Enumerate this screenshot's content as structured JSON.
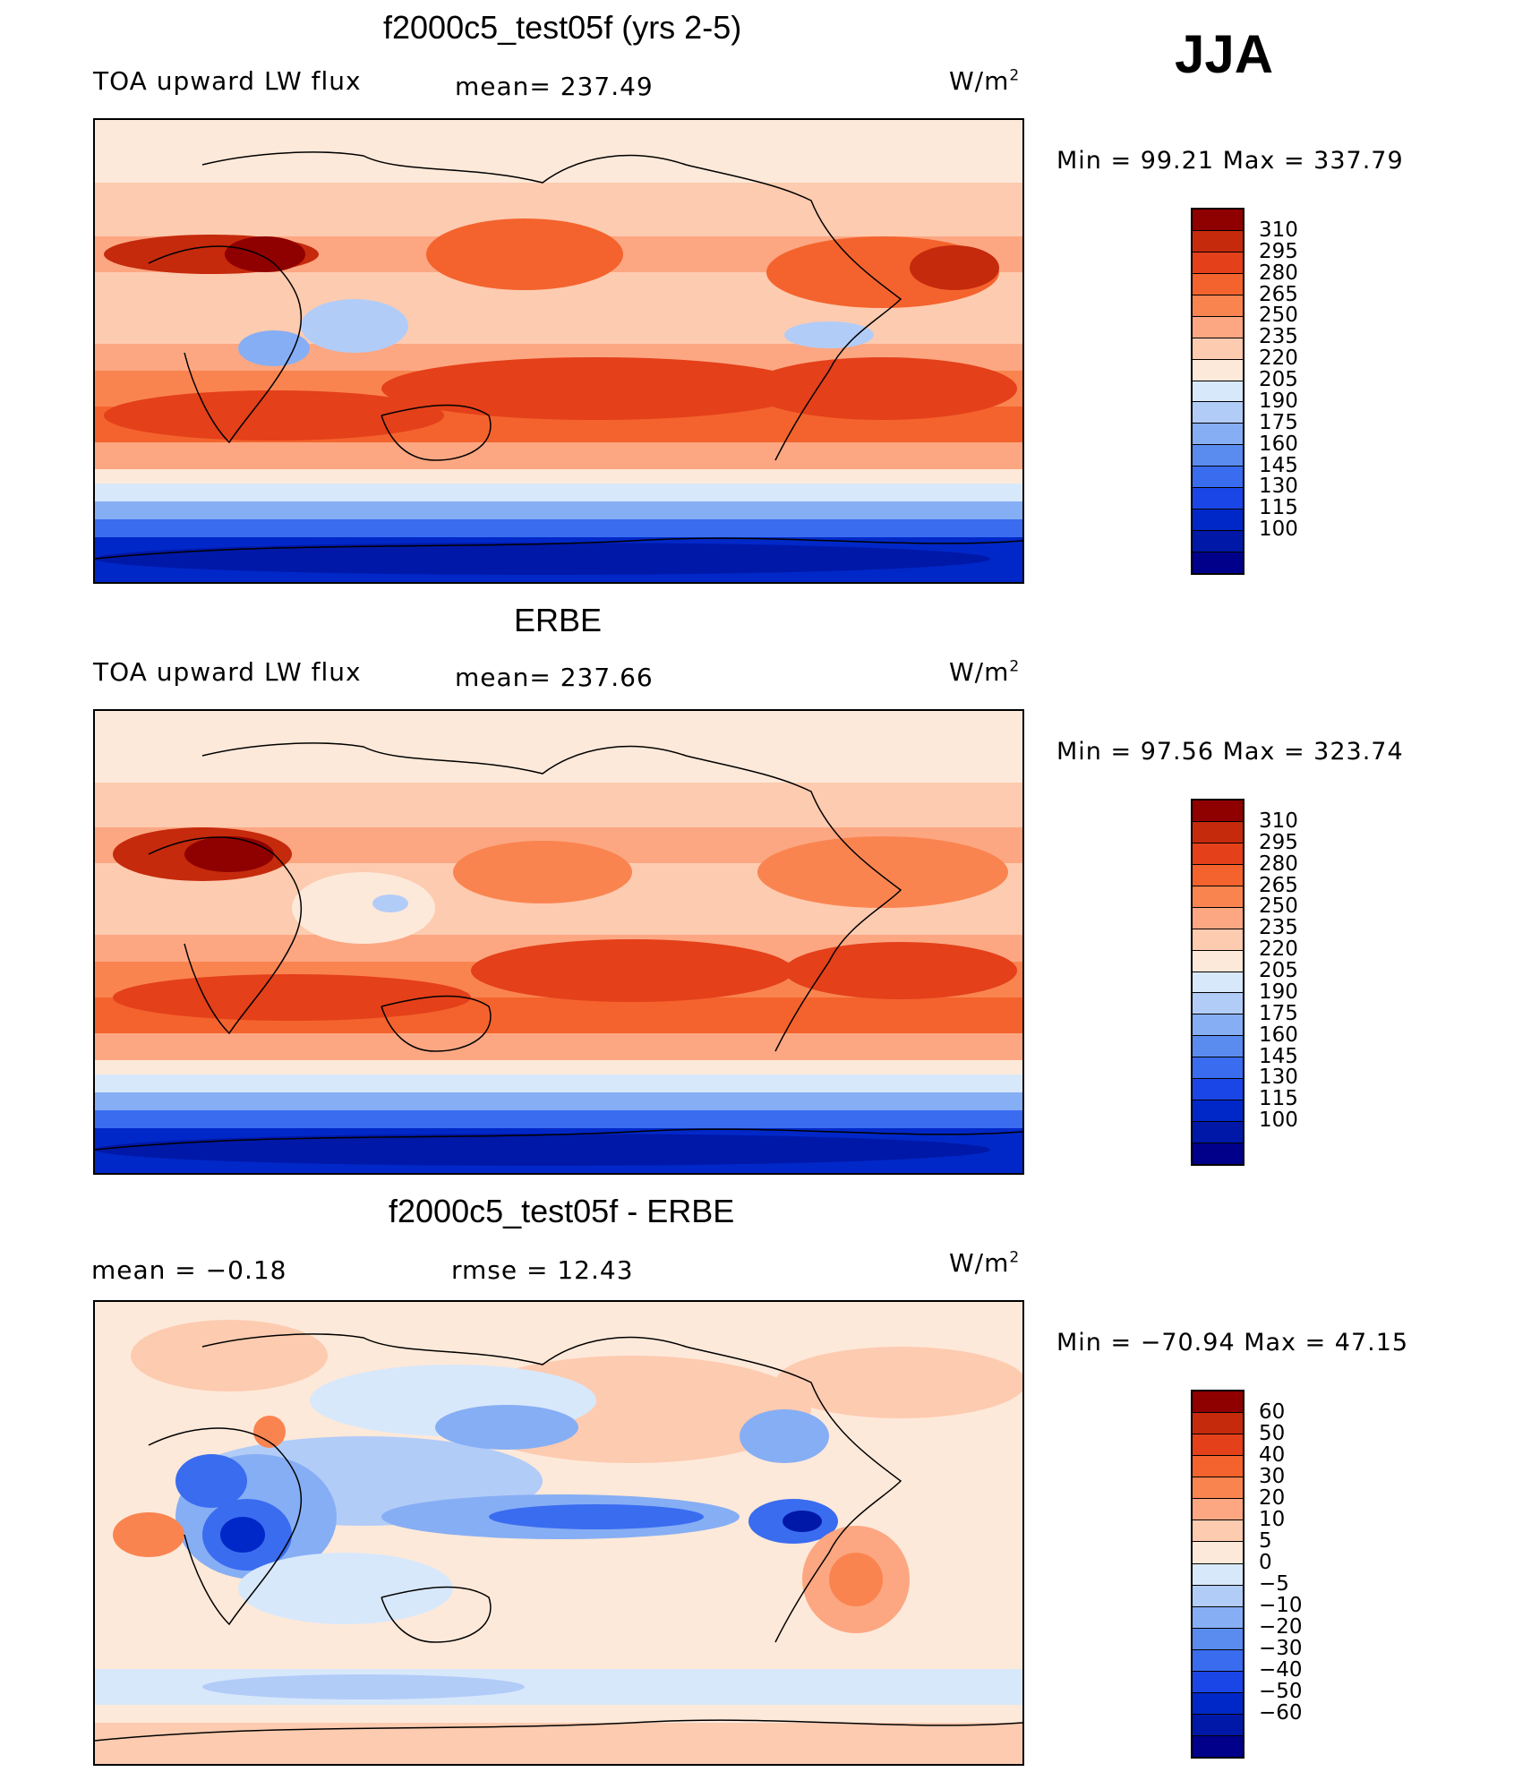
{
  "season": "JJA",
  "colors": {
    "abs_scale": [
      "#00008b",
      "#0018a8",
      "#0028c8",
      "#1a46e8",
      "#3a6cf0",
      "#5a8cf0",
      "#86aef4",
      "#b2ccf8",
      "#d8e8fb",
      "#fde9d9",
      "#fdcbb0",
      "#fca782",
      "#fa8450",
      "#f4632d",
      "#e4401a",
      "#c52a0c",
      "#8f0000"
    ],
    "diff_scale": [
      "#00008b",
      "#0018a8",
      "#0028c8",
      "#1a46e8",
      "#3a6cf0",
      "#5a8cf0",
      "#86aef4",
      "#b2ccf8",
      "#d8e8fb",
      "#fde9d9",
      "#fdcbb0",
      "#fca782",
      "#fa8450",
      "#f4632d",
      "#e4401a",
      "#c52a0c",
      "#8f0000"
    ]
  },
  "panels": [
    {
      "title": "f2000c5_test05f (yrs 2-5)",
      "variable": "TOA upward LW flux",
      "mean_label": "mean= 237.49",
      "units": "W/m",
      "units_sup": "2",
      "minmax": "Min  =    99.21  Max  =  337.79",
      "levels": [
        "310",
        "295",
        "280",
        "265",
        "250",
        "235",
        "220",
        "205",
        "190",
        "175",
        "160",
        "145",
        "130",
        "115",
        "100"
      ]
    },
    {
      "title": "ERBE",
      "variable": "TOA upward LW flux",
      "mean_label": "mean= 237.66",
      "units": "W/m",
      "units_sup": "2",
      "minmax": "Min  =    97.56  Max  =  323.74",
      "levels": [
        "310",
        "295",
        "280",
        "265",
        "250",
        "235",
        "220",
        "205",
        "190",
        "175",
        "160",
        "145",
        "130",
        "115",
        "100"
      ]
    },
    {
      "title": "f2000c5_test05f - ERBE",
      "mean_text": "mean  =     −0.18",
      "rmse_text": "rmse  =     12.43",
      "units": "W/m",
      "units_sup": "2",
      "minmax": "Min  = −70.94  Max  =    47.15",
      "levels": [
        "60",
        "50",
        "40",
        "30",
        "20",
        "10",
        "5",
        "0",
        "−5",
        "−10",
        "−20",
        "−30",
        "−40",
        "−50",
        "−60"
      ]
    }
  ],
  "chart_data": [
    {
      "type": "heatmap",
      "title": "f2000c5_test05f (yrs 2-5)",
      "variable": "TOA upward LW flux",
      "units": "W/m2",
      "season": "JJA",
      "mean": 237.49,
      "min": 99.21,
      "max": 337.79,
      "levels": [
        100,
        115,
        130,
        145,
        160,
        175,
        190,
        205,
        220,
        235,
        250,
        265,
        280,
        295,
        310
      ],
      "projection": "cylindrical equidistant, centered on Pacific"
    },
    {
      "type": "heatmap",
      "title": "ERBE",
      "variable": "TOA upward LW flux",
      "units": "W/m2",
      "season": "JJA",
      "mean": 237.66,
      "min": 97.56,
      "max": 323.74,
      "levels": [
        100,
        115,
        130,
        145,
        160,
        175,
        190,
        205,
        220,
        235,
        250,
        265,
        280,
        295,
        310
      ],
      "projection": "cylindrical equidistant, centered on Pacific"
    },
    {
      "type": "heatmap",
      "title": "f2000c5_test05f - ERBE",
      "units": "W/m2",
      "season": "JJA",
      "mean": -0.18,
      "rmse": 12.43,
      "min": -70.94,
      "max": 47.15,
      "levels": [
        -60,
        -50,
        -40,
        -30,
        -20,
        -10,
        -5,
        0,
        5,
        10,
        20,
        30,
        40,
        50,
        60
      ],
      "projection": "cylindrical equidistant, centered on Pacific"
    }
  ]
}
